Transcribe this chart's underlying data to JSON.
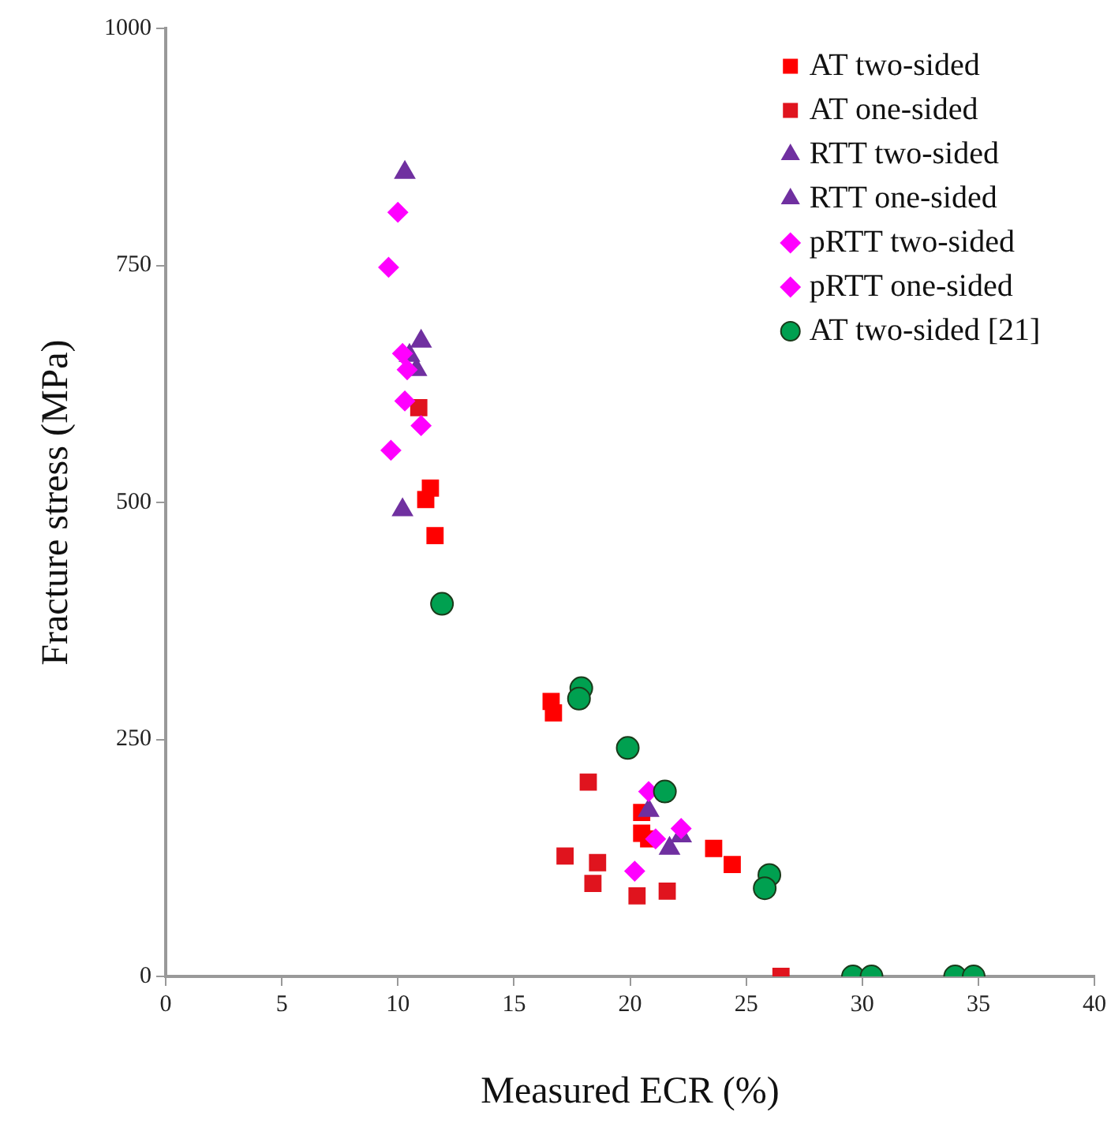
{
  "chart_data": {
    "type": "scatter",
    "xlabel": "Measured ECR (%)",
    "ylabel": "Fracture stress (MPa)",
    "xlim": [
      0,
      40
    ],
    "xticks": [
      0,
      5,
      10,
      15,
      20,
      25,
      30,
      35,
      40
    ],
    "ylim": [
      0,
      1000
    ],
    "yticks": [
      0,
      250,
      500,
      750,
      1000
    ],
    "grid": false,
    "legend": "top right",
    "series": [
      {
        "name": "AT two-sided",
        "color": "#ff0000",
        "marker": "square",
        "x": [
          11.4,
          11.2,
          11.6,
          16.6,
          16.7,
          20.5,
          20.5,
          20.8,
          23.6,
          24.4
        ],
        "values": [
          515,
          503,
          465,
          290,
          278,
          173,
          151,
          145,
          135,
          118
        ]
      },
      {
        "name": "AT one-sided",
        "color": "#e0141e",
        "marker": "square",
        "x": [
          10.9,
          18.2,
          17.2,
          18.6,
          18.4,
          20.3,
          21.6,
          26.5
        ],
        "values": [
          600,
          205,
          127,
          120,
          98,
          85,
          90,
          0
        ]
      },
      {
        "name": "RTT two-sided",
        "color": "#7030a0",
        "marker": "triangle",
        "x": [
          10.3,
          10.5,
          10.8,
          20.8,
          21.7
        ],
        "values": [
          848,
          655,
          640,
          175,
          135
        ]
      },
      {
        "name": "RTT one-sided",
        "color": "#7030a0",
        "marker": "triangle",
        "x": [
          11.0,
          10.2,
          22.2
        ],
        "values": [
          670,
          492,
          148
        ]
      },
      {
        "name": "pRTT two-sided",
        "color": "#ff00ff",
        "marker": "diamond",
        "x": [
          10.0,
          9.6,
          10.4,
          9.7,
          20.8,
          21.1
        ],
        "values": [
          806,
          748,
          640,
          555,
          195,
          145
        ]
      },
      {
        "name": "pRTT one-sided",
        "color": "#ff00ff",
        "marker": "diamond",
        "x": [
          10.2,
          10.3,
          11.0,
          20.2,
          22.2
        ],
        "values": [
          657,
          607,
          581,
          111,
          156
        ]
      },
      {
        "name": "AT two-sided [21]",
        "color": "#00a050",
        "marker": "circle",
        "x": [
          11.9,
          17.9,
          17.8,
          19.9,
          21.5,
          26.0,
          25.8,
          29.6,
          30.4,
          34.0,
          34.8
        ],
        "values": [
          393,
          304,
          293,
          241,
          195,
          107,
          93,
          0,
          0,
          0,
          0
        ]
      }
    ]
  }
}
